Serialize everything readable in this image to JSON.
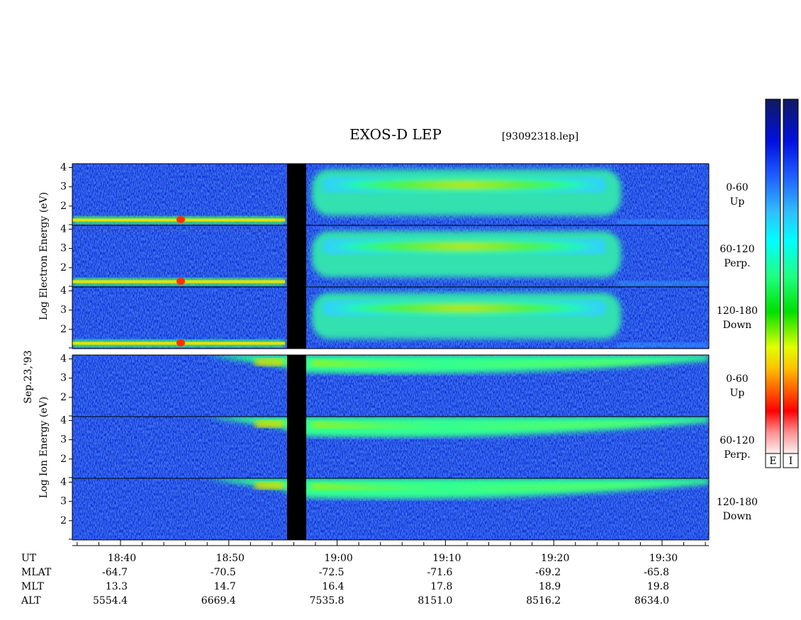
{
  "chart_data": {
    "type": "spectrogram",
    "title": "EXOS-D LEP",
    "subtitle": "[93092318.lep]",
    "date_label": "Sep.23,'93",
    "groups": [
      {
        "name": "Electron",
        "ylabel": "Log  Electron  Energy (eV)",
        "panels": [
          {
            "angle": "0-60",
            "direction": "Up",
            "ylim": [
              1,
              4.2
            ],
            "yticks": [
              2,
              3,
              4
            ]
          },
          {
            "angle": "60-120",
            "direction": "Perp.",
            "ylim": [
              1,
              4.2
            ],
            "yticks": [
              2,
              3,
              4
            ]
          },
          {
            "angle": "120-180",
            "direction": "Down",
            "ylim": [
              1,
              4.2
            ],
            "yticks": [
              2,
              3,
              4
            ]
          }
        ]
      },
      {
        "name": "Ion",
        "ylabel": "Log  Ion  Energy (eV)",
        "panels": [
          {
            "angle": "0-60",
            "direction": "Up",
            "ylim": [
              1,
              4.2
            ],
            "yticks": [
              2,
              3,
              4
            ]
          },
          {
            "angle": "60-120",
            "direction": "Perp.",
            "ylim": [
              1,
              4.2
            ],
            "yticks": [
              2,
              3,
              4
            ]
          },
          {
            "angle": "120-180",
            "direction": "Down",
            "ylim": [
              1,
              4.2
            ],
            "yticks": [
              2,
              3,
              4
            ]
          }
        ]
      }
    ],
    "colorbars": [
      "E",
      "I"
    ],
    "ephemeris": [
      [
        "UT",
        "18:40",
        "18:50",
        "19:00",
        "19:10",
        "19:20",
        "19:30"
      ],
      [
        "MLAT",
        "-64.7",
        "-70.5",
        "-72.5",
        "-71.6",
        "-69.2",
        "-65.8"
      ],
      [
        "MLT",
        "13.3",
        "14.7",
        "16.4",
        "17.8",
        "18.9",
        "19.8"
      ],
      [
        "ALT",
        "5554.4",
        "6669.4",
        "7535.8",
        "8151.0",
        "8516.2",
        "8634.0"
      ]
    ]
  }
}
